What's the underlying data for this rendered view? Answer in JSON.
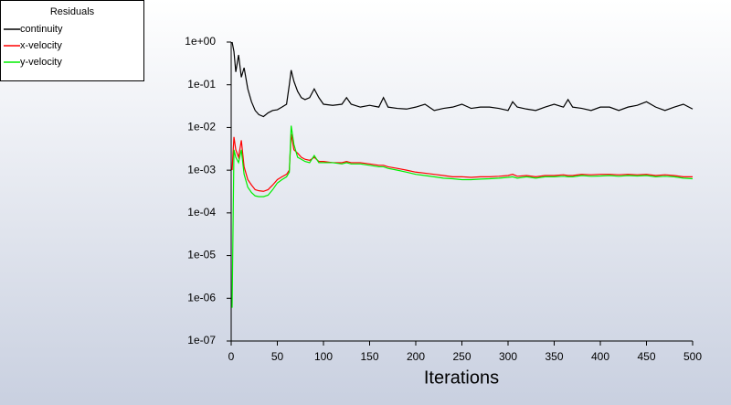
{
  "chart_data": {
    "type": "line",
    "legend_title": "Residuals",
    "xlabel": "Iterations",
    "log_y": true,
    "legend_position": "upper left",
    "x": [
      1,
      3,
      5,
      8,
      11,
      14,
      18,
      22,
      26,
      30,
      35,
      40,
      45,
      50,
      55,
      60,
      63,
      65,
      68,
      72,
      76,
      80,
      85,
      90,
      95,
      100,
      110,
      120,
      125,
      130,
      140,
      150,
      160,
      165,
      170,
      180,
      190,
      200,
      210,
      220,
      230,
      240,
      250,
      260,
      270,
      280,
      290,
      300,
      305,
      310,
      320,
      330,
      340,
      350,
      360,
      365,
      370,
      380,
      390,
      400,
      410,
      420,
      430,
      440,
      450,
      460,
      470,
      480,
      490,
      500
    ],
    "series": [
      {
        "name": "continuity",
        "color": "#000000",
        "values": [
          1,
          0.6,
          0.2,
          0.5,
          0.15,
          0.25,
          0.08,
          0.04,
          0.025,
          0.02,
          0.018,
          0.022,
          0.025,
          0.026,
          0.03,
          0.035,
          0.1,
          0.22,
          0.12,
          0.07,
          0.05,
          0.045,
          0.05,
          0.08,
          0.05,
          0.035,
          0.033,
          0.035,
          0.05,
          0.035,
          0.03,
          0.033,
          0.03,
          0.05,
          0.03,
          0.028,
          0.027,
          0.03,
          0.035,
          0.025,
          0.028,
          0.03,
          0.035,
          0.028,
          0.03,
          0.03,
          0.028,
          0.025,
          0.04,
          0.03,
          0.027,
          0.025,
          0.03,
          0.035,
          0.03,
          0.045,
          0.03,
          0.028,
          0.025,
          0.03,
          0.03,
          0.025,
          0.03,
          0.033,
          0.04,
          0.03,
          0.025,
          0.03,
          0.035,
          0.027
        ]
      },
      {
        "name": "x-velocity",
        "color": "#ff0000",
        "values": [
          0.001,
          0.006,
          0.003,
          0.002,
          0.005,
          0.0012,
          0.0006,
          0.00045,
          0.00035,
          0.00033,
          0.00032,
          0.00035,
          0.00045,
          0.0006,
          0.0007,
          0.0008,
          0.001,
          0.007,
          0.003,
          0.0025,
          0.002,
          0.0018,
          0.0017,
          0.002,
          0.0016,
          0.0016,
          0.0015,
          0.0015,
          0.0016,
          0.0015,
          0.0015,
          0.0014,
          0.0013,
          0.0013,
          0.0012,
          0.0011,
          0.001,
          0.0009,
          0.00085,
          0.0008,
          0.00075,
          0.0007,
          0.0007,
          0.00068,
          0.0007,
          0.0007,
          0.00072,
          0.00075,
          0.0008,
          0.00072,
          0.00075,
          0.0007,
          0.00075,
          0.00075,
          0.00078,
          0.00075,
          0.00075,
          0.0008,
          0.00078,
          0.0008,
          0.0008,
          0.00078,
          0.0008,
          0.00078,
          0.0008,
          0.00075,
          0.00078,
          0.00075,
          0.0007,
          0.0007
        ]
      },
      {
        "name": "y-velocity",
        "color": "#00ee00",
        "values": [
          6e-07,
          0.003,
          0.002,
          0.0015,
          0.003,
          0.0008,
          0.0004,
          0.0003,
          0.00025,
          0.00024,
          0.00024,
          0.00026,
          0.00035,
          0.0005,
          0.0006,
          0.0007,
          0.0009,
          0.011,
          0.004,
          0.002,
          0.0018,
          0.0016,
          0.0015,
          0.0022,
          0.0015,
          0.0015,
          0.0015,
          0.0014,
          0.0015,
          0.0014,
          0.0014,
          0.0013,
          0.0012,
          0.0012,
          0.0011,
          0.001,
          0.0009,
          0.0008,
          0.00075,
          0.0007,
          0.00065,
          0.00063,
          0.0006,
          0.0006,
          0.00062,
          0.00063,
          0.00065,
          0.00068,
          0.0007,
          0.00065,
          0.0007,
          0.00065,
          0.0007,
          0.0007,
          0.00072,
          0.0007,
          0.0007,
          0.00075,
          0.00072,
          0.00073,
          0.00075,
          0.00072,
          0.00075,
          0.00073,
          0.00075,
          0.0007,
          0.00072,
          0.0007,
          0.00065,
          0.00063
        ]
      }
    ],
    "xlim": [
      0,
      500
    ],
    "xticks": [
      0,
      50,
      100,
      150,
      200,
      250,
      300,
      350,
      400,
      450,
      500
    ],
    "ylim": [
      1e-07,
      1
    ],
    "yticks": [
      {
        "value": 1e-07,
        "label": "1e-07"
      },
      {
        "value": 1e-06,
        "label": "1e-06"
      },
      {
        "value": 1e-05,
        "label": "1e-05"
      },
      {
        "value": 0.0001,
        "label": "1e-04"
      },
      {
        "value": 0.001,
        "label": "1e-03"
      },
      {
        "value": 0.01,
        "label": "1e-02"
      },
      {
        "value": 0.1,
        "label": "1e-01"
      },
      {
        "value": 1,
        "label": "1e+00"
      }
    ]
  }
}
